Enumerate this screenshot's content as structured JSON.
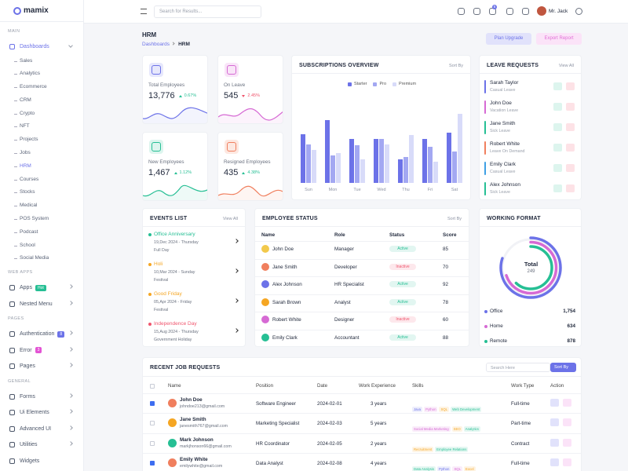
{
  "sidebar": {
    "brand": "mamix",
    "groups": [
      {
        "title": "MAIN",
        "items": [
          {
            "label": "Dashboards",
            "active": true,
            "submenu": true,
            "children": [
              {
                "label": "Sales"
              },
              {
                "label": "Analytics"
              },
              {
                "label": "Ecommerce"
              },
              {
                "label": "CRM"
              },
              {
                "label": "Crypto"
              },
              {
                "label": "NFT"
              },
              {
                "label": "Projects"
              },
              {
                "label": "Jobs"
              },
              {
                "label": "HRM",
                "active": true
              },
              {
                "label": "Courses"
              },
              {
                "label": "Stocks"
              },
              {
                "label": "Medical"
              },
              {
                "label": "POS System"
              },
              {
                "label": "Podcast"
              },
              {
                "label": "School"
              },
              {
                "label": "Social Media"
              }
            ]
          }
        ]
      },
      {
        "title": "WEB APPS",
        "items": [
          {
            "label": "Apps",
            "badge": "Hot",
            "badge_color": "#26bf94",
            "submenu": true
          },
          {
            "label": "Nested Menu",
            "submenu": true
          }
        ]
      },
      {
        "title": "PAGES",
        "items": [
          {
            "label": "Authentication",
            "badge": "8",
            "badge_color": "#6c72e8",
            "submenu": true
          },
          {
            "label": "Error",
            "badge": "3",
            "badge_color": "#e354d4",
            "submenu": true
          },
          {
            "label": "Pages",
            "submenu": true
          }
        ]
      },
      {
        "title": "GENERAL",
        "items": [
          {
            "label": "Forms",
            "submenu": true
          },
          {
            "label": "Ui Elements",
            "submenu": true
          },
          {
            "label": "Advanced UI",
            "submenu": true
          },
          {
            "label": "Utilities",
            "submenu": true
          },
          {
            "label": "Widgets"
          }
        ]
      }
    ]
  },
  "header": {
    "search_placeholder": "Search for Results...",
    "cart_count": "5",
    "user": "Mr. Jack"
  },
  "page": {
    "title": "HRM",
    "breadcrumb": [
      "Dashboards",
      "HRM"
    ],
    "buttons": [
      {
        "label": "Plan Upgrade",
        "color": "#6c72e8",
        "bg": "#e1e2fb"
      },
      {
        "label": "Export Report",
        "color": "#e06fd6",
        "bg": "#fbe3f8"
      }
    ]
  },
  "stats": [
    {
      "label": "Total Employees",
      "value": "13,776",
      "change": "0.67%",
      "trend": "up",
      "color": "#6c72e8",
      "bg": "#e7e8fc",
      "change_color": "#26bf94"
    },
    {
      "label": "On Leave",
      "value": "545",
      "change": "2.45%",
      "trend": "down",
      "color": "#d66ad4",
      "bg": "#f9e5f8",
      "change_color": "#f0566e"
    },
    {
      "label": "New Employees",
      "value": "1,467",
      "change": "1.12%",
      "trend": "up",
      "color": "#26bf94",
      "bg": "#ddf5ee",
      "change_color": "#26bf94"
    },
    {
      "label": "Resigned Employees",
      "value": "435",
      "change": "4.38%",
      "trend": "up",
      "color": "#f07f5e",
      "bg": "#fde8e1",
      "change_color": "#26bf94"
    }
  ],
  "chart_data": {
    "type": "bar",
    "title": "SUBSCRIPTIONS OVERVIEW",
    "sort": "Sort By",
    "categories": [
      "Sun",
      "Mon",
      "Tue",
      "Wed",
      "Thu",
      "Fri",
      "Sat"
    ],
    "series": [
      {
        "name": "Starter",
        "color": "#6c72e8",
        "values": [
          62,
          80,
          56,
          56,
          30,
          56,
          64
        ]
      },
      {
        "name": "Pro",
        "color": "#a3a8f2",
        "values": [
          49,
          35,
          48,
          56,
          33,
          46,
          40
        ]
      },
      {
        "name": "Premium",
        "color": "#d8dbf9",
        "values": [
          42,
          38,
          30,
          49,
          61,
          27,
          88
        ]
      }
    ]
  },
  "leave_requests": {
    "title": "LEAVE REQUESTS",
    "view_all": "View All",
    "items": [
      {
        "name": "Sarah Taylor",
        "type": "Casual Leave",
        "color": "#6c72e8"
      },
      {
        "name": "John Doe",
        "type": "Vacation Leave",
        "color": "#d66ad4"
      },
      {
        "name": "Jane Smith",
        "type": "Sick Leave",
        "color": "#26bf94"
      },
      {
        "name": "Robert White",
        "type": "Leave On Demand",
        "color": "#f07f5e"
      },
      {
        "name": "Emily Clark",
        "type": "Casual Leave",
        "color": "#3ea0e4"
      },
      {
        "name": "Alex Johnson",
        "type": "Sick Leave",
        "color": "#26bf94"
      }
    ]
  },
  "events": {
    "title": "EVENTS LIST",
    "view_all": "View All",
    "items": [
      {
        "name": "Office Anniversary",
        "date": "19,Dec 2024 - Thursday",
        "kind": "Full Day",
        "color": "#26bf94"
      },
      {
        "name": "Holi",
        "date": "10,Mar 2024 - Sunday",
        "kind": "Festival",
        "color": "#f5a623"
      },
      {
        "name": "Good Friday",
        "date": "05,Apr 2024 - Friday",
        "kind": "Festival",
        "color": "#f5a623"
      },
      {
        "name": "Independence Day",
        "date": "15,Aug 2024 - Thursday",
        "kind": "Government Holiday",
        "color": "#f0566e"
      }
    ]
  },
  "employee_status": {
    "title": "EMPLOYEE STATUS",
    "sort": "Sort By",
    "columns": [
      "Name",
      "Role",
      "Status",
      "Score"
    ],
    "rows": [
      {
        "name": "John Doe",
        "role": "Manager",
        "status": "Active",
        "status_color": "#26bf94",
        "score": "85"
      },
      {
        "name": "Jane Smith",
        "role": "Developer",
        "status": "Inactive",
        "status_color": "#f0566e",
        "score": "70"
      },
      {
        "name": "Alex Johnson",
        "role": "HR Specialist",
        "status": "Active",
        "status_color": "#26bf94",
        "score": "92"
      },
      {
        "name": "Sarah Brown",
        "role": "Analyst",
        "status": "Active",
        "status_color": "#26bf94",
        "score": "78"
      },
      {
        "name": "Robert White",
        "role": "Designer",
        "status": "Inactive",
        "status_color": "#f0566e",
        "score": "60"
      },
      {
        "name": "Emily Clark",
        "role": "Accountant",
        "status": "Active",
        "status_color": "#26bf94",
        "score": "88"
      }
    ]
  },
  "working_format": {
    "title": "WORKING FORMAT",
    "total_label": "Total",
    "total": "249",
    "items": [
      {
        "label": "Office",
        "value": "1,754",
        "color": "#6c72e8"
      },
      {
        "label": "Home",
        "value": "634",
        "color": "#d66ad4"
      },
      {
        "label": "Remote",
        "value": "878",
        "color": "#26bf94"
      }
    ]
  },
  "job_requests": {
    "title": "RECENT JOB REQUESTS",
    "search_placeholder": "Search Here",
    "sort": "Sort By",
    "columns": [
      "Name",
      "Position",
      "Date",
      "Work Experience",
      "Skills",
      "Work Type",
      "Action"
    ],
    "rows": [
      {
        "name": "John Doe",
        "email": "johndoe213@gmail.com",
        "position": "Software Engineer",
        "date": "2024-02-01",
        "experience": "3 years",
        "skills": [
          "Java",
          "Python",
          "SQL",
          "Web Development"
        ],
        "work_type": "Full-time",
        "checked": true
      },
      {
        "name": "Jane Smith",
        "email": "janesmith767@gmail.com",
        "position": "Marketing Specialist",
        "date": "2024-02-03",
        "experience": "5 years",
        "skills": [
          "Social Media Marketing",
          "SEO",
          "Analytics"
        ],
        "work_type": "Part-time",
        "checked": false
      },
      {
        "name": "Mark Johnson",
        "email": "markjhonson66@gmail.com",
        "position": "HR Coordinator",
        "date": "2024-02-05",
        "experience": "2 years",
        "skills": [
          "Recruitment",
          "Employee Relations"
        ],
        "work_type": "Contract",
        "checked": false
      },
      {
        "name": "Emily White",
        "email": "emilywhite@gmail.com",
        "position": "Data Analyst",
        "date": "2024-02-08",
        "experience": "4 years",
        "skills": [
          "Data Analysis",
          "Python",
          "SQL",
          "Excel"
        ],
        "work_type": "Full-time",
        "checked": true
      }
    ]
  }
}
